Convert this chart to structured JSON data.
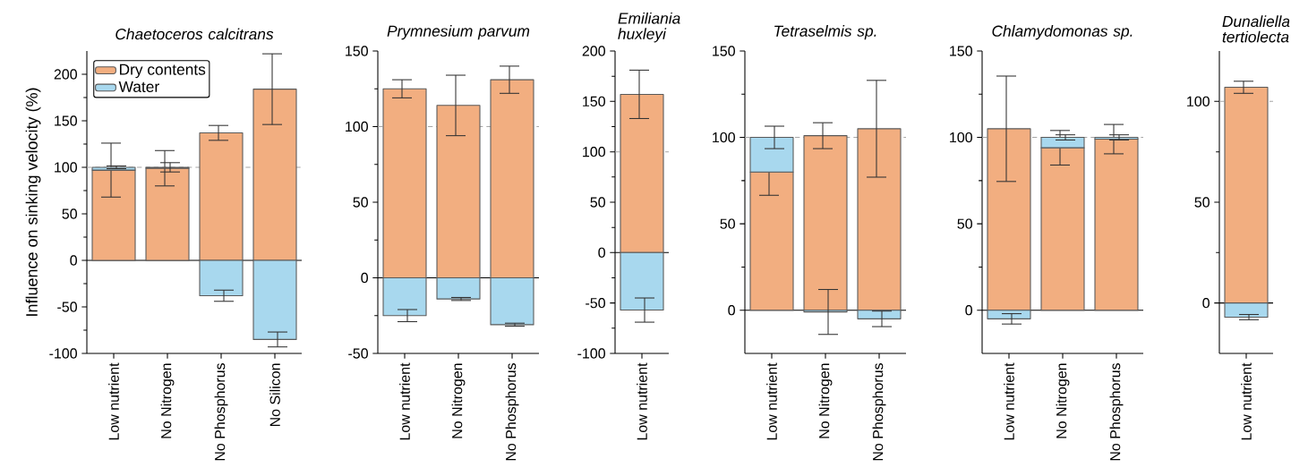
{
  "chart_data": [
    {
      "type": "bar",
      "stacked": true,
      "title": "Chaetoceros calcitrans",
      "ylabel": "Influence on sinking velocity (%)",
      "categories": [
        "Low nutrient",
        "No Nitrogen",
        "No Phosphorus",
        "No Silicon"
      ],
      "legend": "top left",
      "series": [
        {
          "name": "Dry contents",
          "color": "#f2ae80",
          "values": [
            97,
            99,
            137,
            184
          ],
          "errors": [
            29,
            19,
            8,
            38
          ]
        },
        {
          "name": "Water",
          "color": "#a8d8ee",
          "values": [
            3,
            1,
            -38,
            -85
          ],
          "errors": [
            1.5,
            5,
            6,
            8
          ]
        }
      ],
      "ylim": [
        -100,
        225
      ],
      "yticks": [
        -100,
        -50,
        0,
        50,
        100,
        150,
        200
      ],
      "ref_lines": [
        {
          "axis": "y",
          "value": 100,
          "color": "#a6a6a6",
          "line_style": "dashed"
        },
        {
          "axis": "y",
          "value": 0,
          "color": "#000000",
          "line_style": "solid"
        }
      ]
    },
    {
      "type": "bar",
      "stacked": true,
      "title": "Prymnesium parvum",
      "categories": [
        "Low nutrient",
        "No Nitrogen",
        "No Phosphorus"
      ],
      "series": [
        {
          "color": "#f2ae80",
          "values": [
            125,
            114,
            131
          ],
          "errors": [
            6,
            20,
            9
          ]
        },
        {
          "color": "#a8d8ee",
          "values": [
            -25,
            -14,
            -31
          ],
          "errors": [
            4,
            1,
            1
          ]
        }
      ],
      "ylim": [
        -50,
        150
      ],
      "yticks": [
        -50,
        0,
        50,
        100,
        150
      ],
      "ref_lines": [
        {
          "axis": "y",
          "value": 100,
          "color": "#a6a6a6",
          "line_style": "dashed"
        },
        {
          "axis": "y",
          "value": 0,
          "color": "#000000",
          "line_style": "solid"
        }
      ]
    },
    {
      "type": "bar",
      "stacked": true,
      "title": "Emiliania huxleyi",
      "categories": [
        "Low nutrient"
      ],
      "series": [
        {
          "color": "#f2ae80",
          "values": [
            157
          ],
          "errors": [
            24
          ]
        },
        {
          "color": "#a8d8ee",
          "values": [
            -57
          ],
          "errors": [
            12
          ]
        }
      ],
      "ylim": [
        -100,
        200
      ],
      "yticks": [
        -100,
        -50,
        0,
        50,
        100,
        150,
        200
      ],
      "ref_lines": [
        {
          "axis": "y",
          "value": 100,
          "color": "#a6a6a6",
          "line_style": "dashed"
        },
        {
          "axis": "y",
          "value": 0,
          "color": "#000000",
          "line_style": "solid"
        }
      ]
    },
    {
      "type": "bar",
      "stacked": true,
      "title": "Tetraselmis sp.",
      "categories": [
        "Low nutrient",
        "No Nitrogen",
        "No Phosphorus"
      ],
      "series": [
        {
          "color": "#f2ae80",
          "values": [
            80,
            101,
            105
          ],
          "errors": [
            13.5,
            7.5,
            28
          ]
        },
        {
          "color": "#a8d8ee",
          "values": [
            20,
            -1,
            -5
          ],
          "errors": [
            6.5,
            13,
            4.5
          ]
        }
      ],
      "ylim": [
        -25,
        150
      ],
      "yticks": [
        0,
        50,
        100,
        150
      ],
      "ref_lines": [
        {
          "axis": "y",
          "value": 100,
          "color": "#a6a6a6",
          "line_style": "dashed"
        },
        {
          "axis": "y",
          "value": 0,
          "color": "#000000",
          "line_style": "solid"
        }
      ]
    },
    {
      "type": "bar",
      "stacked": true,
      "title": "Chlamydomonas sp.",
      "categories": [
        "Low nutrient",
        "No Nitrogen",
        "No Phosphorus"
      ],
      "series": [
        {
          "color": "#f2ae80",
          "values": [
            105,
            94,
            99
          ],
          "errors": [
            30.5,
            10,
            8.5
          ]
        },
        {
          "color": "#a8d8ee",
          "values": [
            -5,
            6,
            1
          ],
          "errors": [
            3,
            1.5,
            1.5
          ]
        }
      ],
      "ylim": [
        -25,
        150
      ],
      "yticks": [
        0,
        50,
        100,
        150
      ],
      "ref_lines": [
        {
          "axis": "y",
          "value": 100,
          "color": "#a6a6a6",
          "line_style": "dashed"
        },
        {
          "axis": "y",
          "value": 0,
          "color": "#000000",
          "line_style": "solid"
        }
      ]
    },
    {
      "type": "bar",
      "stacked": true,
      "title": "Dunaliella tertiolecta",
      "categories": [
        "Low nutrient"
      ],
      "series": [
        {
          "color": "#f2ae80",
          "values": [
            107
          ],
          "errors": [
            3
          ]
        },
        {
          "color": "#a8d8ee",
          "values": [
            -7
          ],
          "errors": [
            1.3
          ]
        }
      ],
      "ylim": [
        -25,
        125
      ],
      "yticks": [
        0,
        50,
        100
      ],
      "ref_lines": [
        {
          "axis": "y",
          "value": 100,
          "color": "#a6a6a6",
          "line_style": "dashed"
        },
        {
          "axis": "y",
          "value": 0,
          "color": "#000000",
          "line_style": "solid"
        }
      ]
    }
  ]
}
